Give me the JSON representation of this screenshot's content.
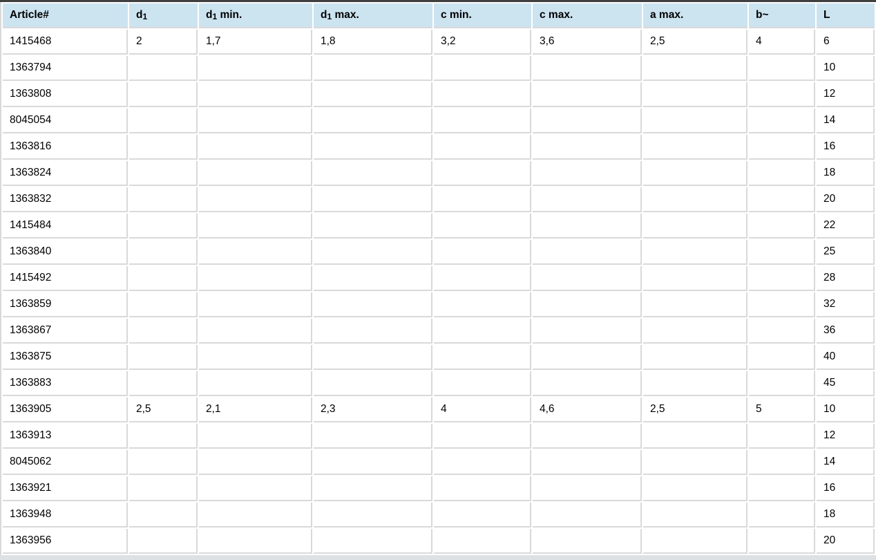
{
  "colors": {
    "header_bg": "#cce3f0",
    "border": "#d9d9d9",
    "top_rule": "#3f3f3f",
    "bottom_bar": "#dde1e4"
  },
  "table": {
    "columns": [
      {
        "id": "article",
        "parts": [
          {
            "t": "Article#"
          }
        ]
      },
      {
        "id": "d1",
        "parts": [
          {
            "t": "d"
          },
          {
            "t": "1",
            "sub": true
          }
        ]
      },
      {
        "id": "d1-min",
        "parts": [
          {
            "t": "d"
          },
          {
            "t": "1",
            "sub": true
          },
          {
            "t": " min."
          }
        ]
      },
      {
        "id": "d1-max",
        "parts": [
          {
            "t": "d"
          },
          {
            "t": "1",
            "sub": true
          },
          {
            "t": " max."
          }
        ]
      },
      {
        "id": "c-min",
        "parts": [
          {
            "t": "c min."
          }
        ]
      },
      {
        "id": "c-max",
        "parts": [
          {
            "t": "c max."
          }
        ]
      },
      {
        "id": "a-max",
        "parts": [
          {
            "t": "a max."
          }
        ]
      },
      {
        "id": "b",
        "parts": [
          {
            "t": "b~"
          }
        ]
      },
      {
        "id": "L",
        "parts": [
          {
            "t": "L"
          }
        ]
      }
    ],
    "rows": [
      [
        "1415468",
        "2",
        "1,7",
        "1,8",
        "3,2",
        "3,6",
        "2,5",
        "4",
        "6"
      ],
      [
        "1363794",
        "",
        "",
        "",
        "",
        "",
        "",
        "",
        "10"
      ],
      [
        "1363808",
        "",
        "",
        "",
        "",
        "",
        "",
        "",
        "12"
      ],
      [
        "8045054",
        "",
        "",
        "",
        "",
        "",
        "",
        "",
        "14"
      ],
      [
        "1363816",
        "",
        "",
        "",
        "",
        "",
        "",
        "",
        "16"
      ],
      [
        "1363824",
        "",
        "",
        "",
        "",
        "",
        "",
        "",
        "18"
      ],
      [
        "1363832",
        "",
        "",
        "",
        "",
        "",
        "",
        "",
        "20"
      ],
      [
        "1415484",
        "",
        "",
        "",
        "",
        "",
        "",
        "",
        "22"
      ],
      [
        "1363840",
        "",
        "",
        "",
        "",
        "",
        "",
        "",
        "25"
      ],
      [
        "1415492",
        "",
        "",
        "",
        "",
        "",
        "",
        "",
        "28"
      ],
      [
        "1363859",
        "",
        "",
        "",
        "",
        "",
        "",
        "",
        "32"
      ],
      [
        "1363867",
        "",
        "",
        "",
        "",
        "",
        "",
        "",
        "36"
      ],
      [
        "1363875",
        "",
        "",
        "",
        "",
        "",
        "",
        "",
        "40"
      ],
      [
        "1363883",
        "",
        "",
        "",
        "",
        "",
        "",
        "",
        "45"
      ],
      [
        "1363905",
        "2,5",
        "2,1",
        "2,3",
        "4",
        "4,6",
        "2,5",
        "5",
        "10"
      ],
      [
        "1363913",
        "",
        "",
        "",
        "",
        "",
        "",
        "",
        "12"
      ],
      [
        "8045062",
        "",
        "",
        "",
        "",
        "",
        "",
        "",
        "14"
      ],
      [
        "1363921",
        "",
        "",
        "",
        "",
        "",
        "",
        "",
        "16"
      ],
      [
        "1363948",
        "",
        "",
        "",
        "",
        "",
        "",
        "",
        "18"
      ],
      [
        "1363956",
        "",
        "",
        "",
        "",
        "",
        "",
        "",
        "20"
      ]
    ]
  }
}
